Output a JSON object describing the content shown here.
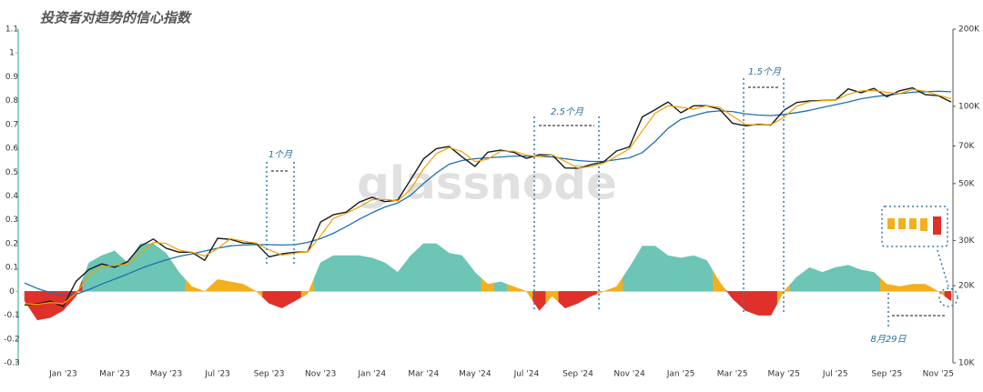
{
  "chart_data": {
    "type": "line",
    "title": "投资者对趋势的信心指数",
    "watermark": "glassnode",
    "annotations": [
      "1个月",
      "2.5个月",
      "1.5个月",
      "8月29日"
    ],
    "categories": [
      null,
      null,
      null,
      "Jan '23",
      null,
      null,
      null,
      "Mar '23",
      null,
      null,
      null,
      "May '23",
      null,
      null,
      null,
      "Jul '23",
      null,
      null,
      null,
      "Sep '23",
      null,
      null,
      null,
      "Nov '23",
      null,
      null,
      null,
      "Jan '24",
      null,
      null,
      null,
      "Mar '24",
      null,
      null,
      null,
      "May '24",
      null,
      null,
      null,
      "Jul '24",
      null,
      null,
      null,
      "Sep '24",
      null,
      null,
      null,
      "Nov '24",
      null,
      null,
      null,
      "Jan '25",
      null,
      null,
      null,
      "Mar '25",
      null,
      null,
      null,
      "May '25",
      null,
      null,
      null,
      "Jul '25",
      null,
      null,
      null,
      "Sep '25",
      null,
      null,
      null,
      "Nov '25",
      null
    ],
    "ylim": [
      -0.3,
      1.1
    ],
    "yticks": [
      -0.3,
      -0.2,
      -0.1,
      0,
      0.1,
      0.2,
      0.3,
      0.4,
      0.5,
      0.6,
      0.7,
      0.8,
      0.9,
      1,
      1.1
    ],
    "y2lim": [
      10000,
      200000
    ],
    "y2scale": "log",
    "y2ticks": [
      {
        "value": 10000,
        "label": "10K"
      },
      {
        "value": 20000,
        "label": "20K"
      },
      {
        "value": 30000,
        "label": "30K"
      },
      {
        "value": 50000,
        "label": "50K"
      },
      {
        "value": 70000,
        "label": "70K"
      },
      {
        "value": 100000,
        "label": "100K"
      },
      {
        "value": 200000,
        "label": "200K"
      }
    ],
    "oscillator": {
      "values": [
        -0.04,
        -0.12,
        -0.11,
        -0.08,
        -0.02,
        0.12,
        0.15,
        0.17,
        0.12,
        0.2,
        0.2,
        0.16,
        0.08,
        0.02,
        0.0,
        0.05,
        0.04,
        0.03,
        0.0,
        -0.05,
        -0.07,
        -0.04,
        -0.01,
        0.12,
        0.15,
        0.15,
        0.15,
        0.14,
        0.12,
        0.08,
        0.15,
        0.2,
        0.2,
        0.16,
        0.15,
        0.08,
        0.03,
        0.04,
        0.02,
        0.0,
        -0.08,
        -0.02,
        -0.07,
        -0.05,
        -0.02,
        0.0,
        0.02,
        0.1,
        0.19,
        0.19,
        0.15,
        0.14,
        0.15,
        0.13,
        0.04,
        -0.03,
        -0.08,
        -0.1,
        -0.1,
        0.0,
        0.06,
        0.1,
        0.08,
        0.1,
        0.11,
        0.09,
        0.08,
        0.03,
        0.02,
        0.03,
        0.03,
        0.0,
        -0.04
      ],
      "point_colors": [
        "#e0302a",
        "#e0302a",
        "#e0302a",
        "#e0302a",
        "#e0302a",
        "#6cc5b5",
        "#6cc5b5",
        "#6cc5b5",
        "#6cc5b5",
        "#6cc5b5",
        "#6cc5b5",
        "#6cc5b5",
        "#6cc5b5",
        "#f2b01e",
        "#f2b01e",
        "#f2b01e",
        "#f2b01e",
        "#f2b01e",
        "#f2b01e",
        "#e0302a",
        "#e0302a",
        "#e0302a",
        "#f2b01e",
        "#6cc5b5",
        "#6cc5b5",
        "#6cc5b5",
        "#6cc5b5",
        "#6cc5b5",
        "#6cc5b5",
        "#6cc5b5",
        "#6cc5b5",
        "#6cc5b5",
        "#6cc5b5",
        "#6cc5b5",
        "#6cc5b5",
        "#6cc5b5",
        "#f2b01e",
        "#6cc5b5",
        "#f2b01e",
        "#f2b01e",
        "#e0302a",
        "#f2b01e",
        "#e0302a",
        "#e0302a",
        "#e0302a",
        "#f2b01e",
        "#f2b01e",
        "#6cc5b5",
        "#6cc5b5",
        "#6cc5b5",
        "#6cc5b5",
        "#6cc5b5",
        "#6cc5b5",
        "#6cc5b5",
        "#f2b01e",
        "#e0302a",
        "#e0302a",
        "#e0302a",
        "#e0302a",
        "#f2b01e",
        "#6cc5b5",
        "#6cc5b5",
        "#6cc5b5",
        "#6cc5b5",
        "#6cc5b5",
        "#6cc5b5",
        "#6cc5b5",
        "#f2b01e",
        "#f2b01e",
        "#f2b01e",
        "#f2b01e",
        "#f2b01e",
        "#e0302a"
      ]
    },
    "series": [
      {
        "color": "#1a1a1a",
        "axis": "y2",
        "width": 1.4,
        "values": [
          16800,
          17000,
          17400,
          16600,
          20800,
          23100,
          24300,
          23600,
          24800,
          28500,
          30400,
          28000,
          27000,
          27000,
          25100,
          30600,
          30300,
          29300,
          29200,
          25900,
          26600,
          27000,
          27100,
          35400,
          37800,
          38700,
          42300,
          44200,
          42500,
          43100,
          51800,
          62400,
          68400,
          69700,
          63500,
          58300,
          66300,
          67500,
          66200,
          62700,
          64800,
          64600,
          57500,
          57300,
          59200,
          60800,
          67000,
          69500,
          91000,
          97000,
          104000,
          94400,
          100500,
          100600,
          97500,
          86000,
          84000,
          85000,
          84500,
          96500,
          103500,
          105000,
          105500,
          105700,
          117000,
          113000,
          117500,
          109000,
          115000,
          118000,
          111000,
          110000,
          104000
        ]
      },
      {
        "color": "#f0a000",
        "axis": "y2",
        "width": 1.2,
        "values": [
          17000,
          16900,
          17200,
          17000,
          18700,
          22000,
          23700,
          24000,
          24200,
          26700,
          29500,
          29200,
          27500,
          27000,
          26100,
          27900,
          30500,
          29800,
          29300,
          27600,
          26300,
          26800,
          27100,
          31300,
          36600,
          38300,
          40500,
          43300,
          43400,
          42800,
          47500,
          57100,
          65400,
          69100,
          66600,
          60900,
          62300,
          66900,
          66900,
          64500,
          63800,
          64700,
          61100,
          57400,
          58300,
          60000,
          63900,
          68300,
          80300,
          94000,
          100500,
          99200,
          97500,
          100600,
          99100,
          91800,
          85000,
          84500,
          84800,
          90500,
          100000,
          104300,
          105300,
          105600,
          111400,
          115000,
          115300,
          113300,
          112000,
          116500,
          114500,
          110500,
          107000
        ]
      },
      {
        "color": "#1f6fb2",
        "axis": "y2",
        "width": 1.3,
        "values": [
          20500,
          19500,
          18800,
          18300,
          18500,
          19300,
          20300,
          21200,
          22200,
          23300,
          24300,
          25200,
          26000,
          26600,
          27300,
          28000,
          28600,
          28800,
          28900,
          28900,
          28800,
          28900,
          29500,
          30500,
          32000,
          34000,
          36300,
          38500,
          40500,
          42000,
          45000,
          50000,
          55000,
          59500,
          61500,
          62500,
          63000,
          63500,
          64000,
          64000,
          63800,
          63500,
          62500,
          61500,
          61000,
          61000,
          62000,
          63000,
          66000,
          73000,
          82000,
          89000,
          92000,
          95000,
          96000,
          95500,
          93500,
          92500,
          92000,
          93000,
          94500,
          96500,
          99000,
          101500,
          104000,
          107000,
          109000,
          110500,
          112000,
          113500,
          114000,
          114500,
          114000
        ]
      }
    ]
  }
}
